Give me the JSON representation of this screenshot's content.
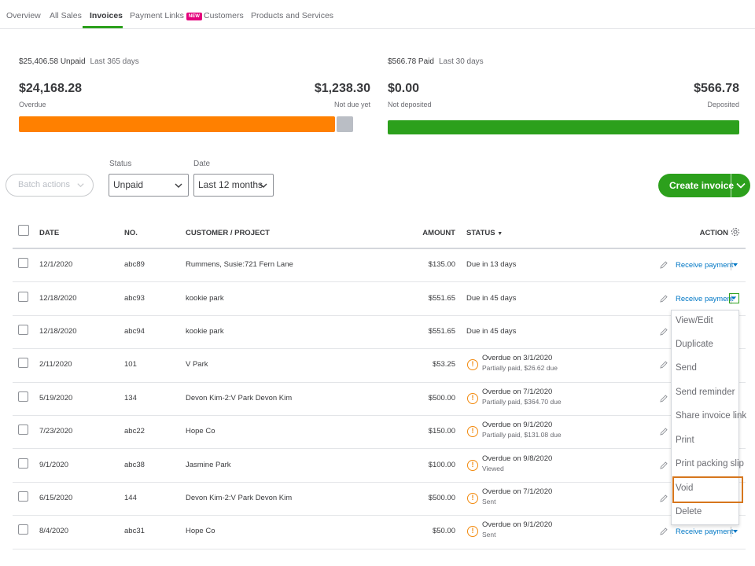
{
  "tabs": [
    {
      "label": "Overview"
    },
    {
      "label": "All Sales"
    },
    {
      "label": "Invoices"
    },
    {
      "label": "Payment Links",
      "badge": "NEW"
    },
    {
      "label": "Customers"
    },
    {
      "label": "Products and Services"
    }
  ],
  "summary": {
    "unpaid": {
      "amount": "$25,406.58 Unpaid",
      "period": "Last 365 days"
    },
    "overdue": {
      "amount": "$24,168.28",
      "label": "Overdue"
    },
    "not_due": {
      "amount": "$1,238.30",
      "label": "Not due yet"
    },
    "paid": {
      "amount": "$566.78 Paid",
      "period": "Last 30 days"
    },
    "not_deposited": {
      "amount": "$0.00",
      "label": "Not deposited"
    },
    "deposited": {
      "amount": "$566.78",
      "label": "Deposited"
    },
    "bars": {
      "overdue_share": 0.95,
      "deposited_share": 1.0
    }
  },
  "colors": {
    "overdue": "#ff8000",
    "not_due": "#babec5",
    "deposited": "#2ca01c",
    "accent": "#2ca01c",
    "link": "#0077c5",
    "warn": "#f2890c",
    "highlight": "#d6761d"
  },
  "filters": {
    "batch_label": "Batch actions",
    "status_label": "Status",
    "status_value": "Unpaid",
    "date_label": "Date",
    "date_value": "Last 12 months"
  },
  "create_label": "Create invoice",
  "table": {
    "headers": {
      "date": "DATE",
      "no": "NO.",
      "customer": "CUSTOMER / PROJECT",
      "amount": "AMOUNT",
      "status": "STATUS",
      "action": "ACTION"
    },
    "action_label": "Receive payment",
    "rows": [
      {
        "date": "12/1/2020",
        "no": "abc89",
        "customer": "Rummens, Susie:721 Fern Lane",
        "amount": "$135.00",
        "status": "Due in 13 days",
        "sub": ""
      },
      {
        "date": "12/18/2020",
        "no": "abc93",
        "customer": "kookie park",
        "amount": "$551.65",
        "status": "Due in 45 days",
        "sub": ""
      },
      {
        "date": "12/18/2020",
        "no": "abc94",
        "customer": "kookie park",
        "amount": "$551.65",
        "status": "Due in 45 days",
        "sub": ""
      },
      {
        "date": "2/11/2020",
        "no": "101",
        "customer": "V Park",
        "amount": "$53.25",
        "status": "Overdue on 3/1/2020",
        "sub": "Partially paid, $26.62 due"
      },
      {
        "date": "5/19/2020",
        "no": "134",
        "customer": "Devon Kim-2:V Park Devon Kim",
        "amount": "$500.00",
        "status": "Overdue on 7/1/2020",
        "sub": "Partially paid, $364.70 due"
      },
      {
        "date": "7/23/2020",
        "no": "abc22",
        "customer": "Hope Co",
        "amount": "$150.00",
        "status": "Overdue on 9/1/2020",
        "sub": "Partially paid, $131.08 due"
      },
      {
        "date": "9/1/2020",
        "no": "abc38",
        "customer": "Jasmine Park",
        "amount": "$100.00",
        "status": "Overdue on 9/8/2020",
        "sub": "Viewed"
      },
      {
        "date": "6/15/2020",
        "no": "144",
        "customer": "Devon Kim-2:V Park Devon Kim",
        "amount": "$500.00",
        "status": "Overdue on 7/1/2020",
        "sub": "Sent"
      },
      {
        "date": "8/4/2020",
        "no": "abc31",
        "customer": "Hope Co",
        "amount": "$50.00",
        "status": "Overdue on 9/1/2020",
        "sub": "Sent"
      }
    ]
  },
  "menu": [
    "View/Edit",
    "Duplicate",
    "Send",
    "Send reminder",
    "Share invoice link",
    "Print",
    "Print packing slip",
    "Void",
    "Delete"
  ]
}
